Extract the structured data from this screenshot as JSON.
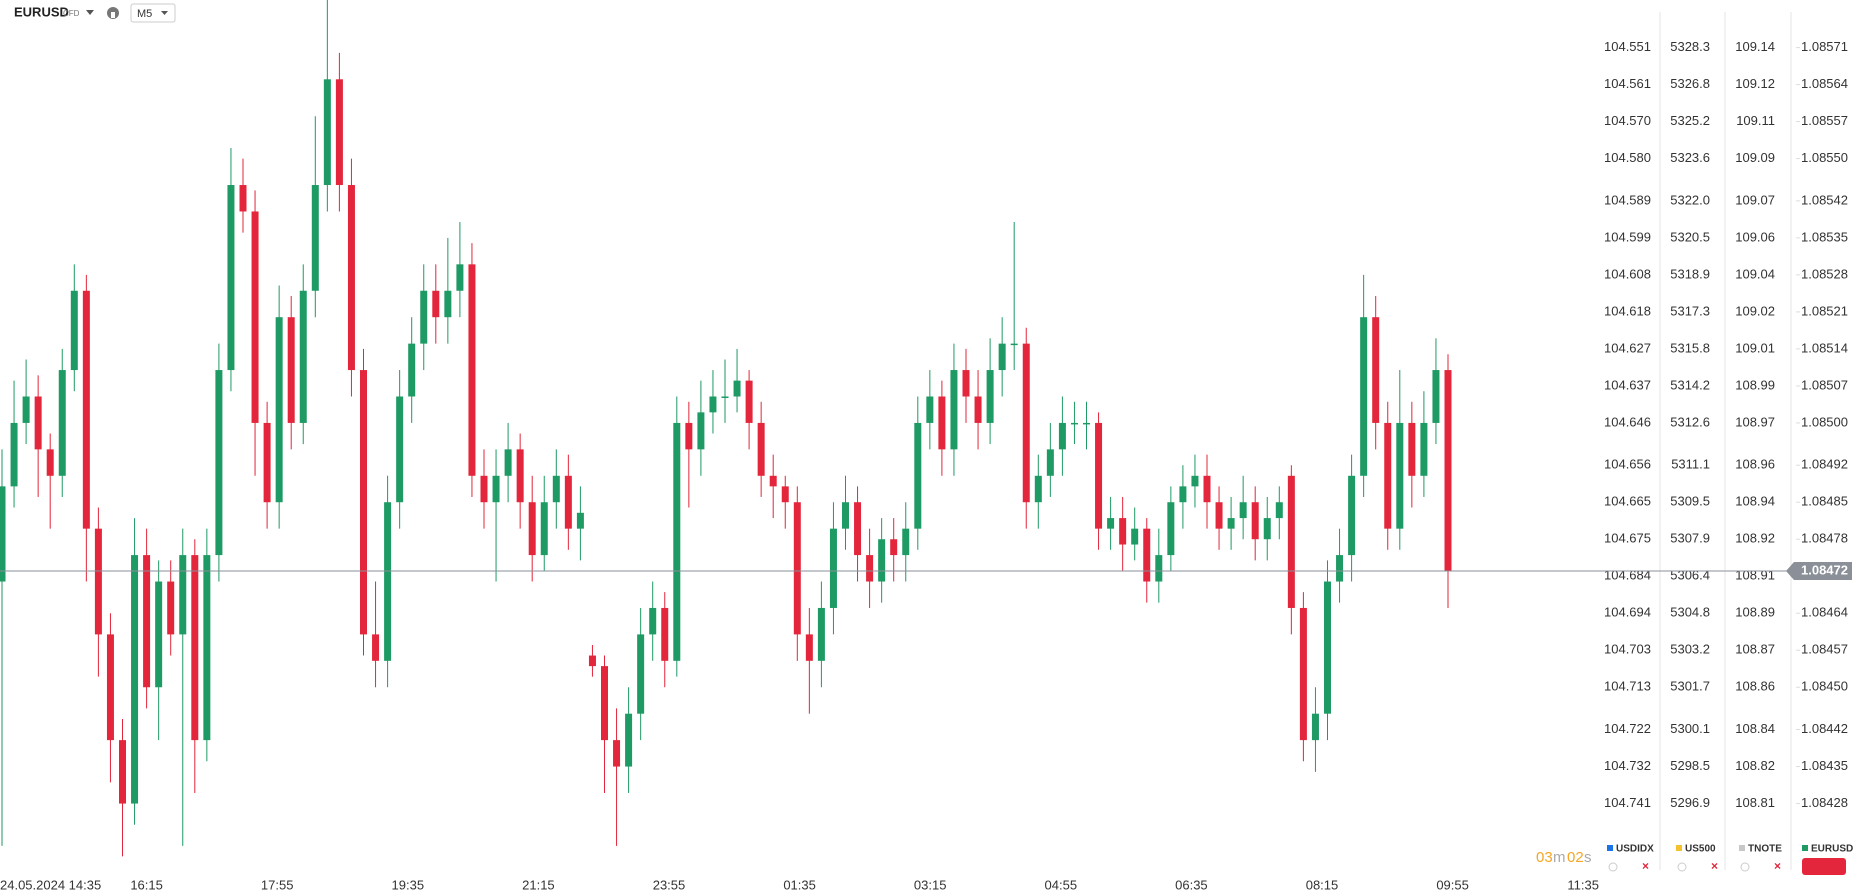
{
  "header": {
    "symbol": "EURUSD",
    "badge": "CFD",
    "timeframe": "M5"
  },
  "chart_data": {
    "type": "candlestick",
    "title": "EURUSD",
    "up_color": "#1e9a64",
    "down_color": "#e3263b",
    "x_labels": [
      "24.05.2024 14:35",
      "16:15",
      "17:55",
      "19:35",
      "21:15",
      "23:55",
      "01:35",
      "03:15",
      "04:55",
      "06:35",
      "08:15",
      "09:55",
      "11:35"
    ],
    "ylim": [
      1.08416,
      1.0858
    ],
    "candles": [
      [
        1.0847,
        1.08495,
        1.0842,
        1.08488
      ],
      [
        1.08488,
        1.08508,
        1.08484,
        1.085
      ],
      [
        1.085,
        1.08512,
        1.08496,
        1.08505
      ],
      [
        1.08505,
        1.08509,
        1.08486,
        1.08495
      ],
      [
        1.08495,
        1.08498,
        1.0848,
        1.0849
      ],
      [
        1.0849,
        1.08514,
        1.08486,
        1.0851
      ],
      [
        1.0851,
        1.0853,
        1.08506,
        1.08525
      ],
      [
        1.08525,
        1.08528,
        1.0847,
        1.0848
      ],
      [
        1.0848,
        1.08484,
        1.08452,
        1.0846
      ],
      [
        1.0846,
        1.08464,
        1.08432,
        1.0844
      ],
      [
        1.0844,
        1.08444,
        1.08418,
        1.08428
      ],
      [
        1.08428,
        1.08482,
        1.08424,
        1.08475
      ],
      [
        1.08475,
        1.0848,
        1.08446,
        1.0845
      ],
      [
        1.0845,
        1.08474,
        1.0844,
        1.0847
      ],
      [
        1.0847,
        1.08474,
        1.08456,
        1.0846
      ],
      [
        1.0846,
        1.0848,
        1.0842,
        1.08475
      ],
      [
        1.08475,
        1.08478,
        1.0843,
        1.0844
      ],
      [
        1.0844,
        1.0848,
        1.08436,
        1.08475
      ],
      [
        1.08475,
        1.08515,
        1.0847,
        1.0851
      ],
      [
        1.0851,
        1.08552,
        1.08506,
        1.08545
      ],
      [
        1.08545,
        1.0855,
        1.08536,
        1.0854
      ],
      [
        1.0854,
        1.08544,
        1.0849,
        1.085
      ],
      [
        1.085,
        1.08504,
        1.0848,
        1.08485
      ],
      [
        1.08485,
        1.08526,
        1.0848,
        1.0852
      ],
      [
        1.0852,
        1.08524,
        1.08495,
        1.085
      ],
      [
        1.085,
        1.0853,
        1.08496,
        1.08525
      ],
      [
        1.08525,
        1.08558,
        1.0852,
        1.08545
      ],
      [
        1.08545,
        1.08583,
        1.0854,
        1.08565
      ],
      [
        1.08565,
        1.0857,
        1.0854,
        1.08545
      ],
      [
        1.08545,
        1.0855,
        1.08505,
        1.0851
      ],
      [
        1.0851,
        1.08514,
        1.08456,
        1.0846
      ],
      [
        1.0846,
        1.0847,
        1.0845,
        1.08455
      ],
      [
        1.08455,
        1.0849,
        1.0845,
        1.08485
      ],
      [
        1.08485,
        1.0851,
        1.0848,
        1.08505
      ],
      [
        1.08505,
        1.0852,
        1.085,
        1.08515
      ],
      [
        1.08515,
        1.0853,
        1.0851,
        1.08525
      ],
      [
        1.08525,
        1.0853,
        1.08515,
        1.0852
      ],
      [
        1.0852,
        1.08535,
        1.08515,
        1.08525
      ],
      [
        1.08525,
        1.08538,
        1.0852,
        1.0853
      ],
      [
        1.0853,
        1.08534,
        1.08486,
        1.0849
      ],
      [
        1.0849,
        1.08495,
        1.0848,
        1.08485
      ],
      [
        1.08485,
        1.08495,
        1.0847,
        1.0849
      ],
      [
        1.0849,
        1.085,
        1.08485,
        1.08495
      ],
      [
        1.08495,
        1.08498,
        1.0848,
        1.08485
      ],
      [
        1.08485,
        1.0849,
        1.0847,
        1.08475
      ],
      [
        1.08475,
        1.0849,
        1.08472,
        1.08485
      ],
      [
        1.08485,
        1.08495,
        1.0848,
        1.0849
      ],
      [
        1.0849,
        1.08494,
        1.08476,
        1.0848
      ],
      [
        1.0848,
        1.08488,
        1.08474,
        1.08483
      ],
      [
        1.08456,
        1.08458,
        1.08452,
        1.08454
      ],
      [
        1.08454,
        1.08456,
        1.0843,
        1.0844
      ],
      [
        1.0844,
        1.08446,
        1.0842,
        1.08435
      ],
      [
        1.08435,
        1.0845,
        1.0843,
        1.08445
      ],
      [
        1.08445,
        1.08465,
        1.0844,
        1.0846
      ],
      [
        1.0846,
        1.0847,
        1.08455,
        1.08465
      ],
      [
        1.08465,
        1.08468,
        1.0845,
        1.08455
      ],
      [
        1.08455,
        1.08505,
        1.08452,
        1.085
      ],
      [
        1.085,
        1.08504,
        1.08484,
        1.08495
      ],
      [
        1.08495,
        1.08508,
        1.0849,
        1.08502
      ],
      [
        1.08502,
        1.0851,
        1.08498,
        1.08505
      ],
      [
        1.08505,
        1.08512,
        1.085,
        1.08505
      ],
      [
        1.08505,
        1.08514,
        1.08502,
        1.08508
      ],
      [
        1.08508,
        1.0851,
        1.08495,
        1.085
      ],
      [
        1.085,
        1.08504,
        1.08486,
        1.0849
      ],
      [
        1.0849,
        1.08494,
        1.08482,
        1.08488
      ],
      [
        1.08488,
        1.0849,
        1.0848,
        1.08485
      ],
      [
        1.08485,
        1.08488,
        1.08455,
        1.0846
      ],
      [
        1.0846,
        1.08465,
        1.08445,
        1.08455
      ],
      [
        1.08455,
        1.0847,
        1.0845,
        1.08465
      ],
      [
        1.08465,
        1.08485,
        1.0846,
        1.0848
      ],
      [
        1.0848,
        1.0849,
        1.08476,
        1.08485
      ],
      [
        1.08485,
        1.08488,
        1.0847,
        1.08475
      ],
      [
        1.08475,
        1.0848,
        1.08465,
        1.0847
      ],
      [
        1.0847,
        1.08482,
        1.08466,
        1.08478
      ],
      [
        1.08478,
        1.08482,
        1.0847,
        1.08475
      ],
      [
        1.08475,
        1.08485,
        1.0847,
        1.0848
      ],
      [
        1.0848,
        1.08505,
        1.08476,
        1.085
      ],
      [
        1.085,
        1.0851,
        1.08495,
        1.08505
      ],
      [
        1.08505,
        1.08508,
        1.0849,
        1.08495
      ],
      [
        1.08495,
        1.08515,
        1.0849,
        1.0851
      ],
      [
        1.0851,
        1.08514,
        1.085,
        1.08505
      ],
      [
        1.08505,
        1.0851,
        1.08495,
        1.085
      ],
      [
        1.085,
        1.08516,
        1.08496,
        1.0851
      ],
      [
        1.0851,
        1.0852,
        1.08505,
        1.08515
      ],
      [
        1.08515,
        1.08538,
        1.0851,
        1.08515
      ],
      [
        1.08515,
        1.08518,
        1.0848,
        1.08485
      ],
      [
        1.08485,
        1.08494,
        1.0848,
        1.0849
      ],
      [
        1.0849,
        1.085,
        1.08486,
        1.08495
      ],
      [
        1.08495,
        1.08505,
        1.0849,
        1.085
      ],
      [
        1.085,
        1.08504,
        1.08496,
        1.085
      ],
      [
        1.085,
        1.08504,
        1.08495,
        1.085
      ],
      [
        1.085,
        1.08502,
        1.08476,
        1.0848
      ],
      [
        1.0848,
        1.08486,
        1.08476,
        1.08482
      ],
      [
        1.08482,
        1.08486,
        1.08472,
        1.08477
      ],
      [
        1.08477,
        1.08484,
        1.08474,
        1.0848
      ],
      [
        1.0848,
        1.08482,
        1.08466,
        1.0847
      ],
      [
        1.0847,
        1.0848,
        1.08466,
        1.08475
      ],
      [
        1.08475,
        1.08488,
        1.08472,
        1.08485
      ],
      [
        1.08485,
        1.08492,
        1.0848,
        1.08488
      ],
      [
        1.08488,
        1.08494,
        1.08484,
        1.0849
      ],
      [
        1.0849,
        1.08494,
        1.0848,
        1.08485
      ],
      [
        1.08485,
        1.08488,
        1.08476,
        1.0848
      ],
      [
        1.0848,
        1.08486,
        1.08476,
        1.08482
      ],
      [
        1.08482,
        1.0849,
        1.08478,
        1.08485
      ],
      [
        1.08485,
        1.08488,
        1.08474,
        1.08478
      ],
      [
        1.08478,
        1.08486,
        1.08474,
        1.08482
      ],
      [
        1.08482,
        1.08488,
        1.08478,
        1.08485
      ],
      [
        1.0849,
        1.08492,
        1.0846,
        1.08465
      ],
      [
        1.08465,
        1.08468,
        1.08436,
        1.0844
      ],
      [
        1.0844,
        1.0845,
        1.08434,
        1.08445
      ],
      [
        1.08445,
        1.08474,
        1.0844,
        1.0847
      ],
      [
        1.0847,
        1.0848,
        1.08466,
        1.08475
      ],
      [
        1.08475,
        1.08494,
        1.0847,
        1.0849
      ],
      [
        1.0849,
        1.08528,
        1.08486,
        1.0852
      ],
      [
        1.0852,
        1.08524,
        1.08495,
        1.085
      ],
      [
        1.085,
        1.08504,
        1.08476,
        1.0848
      ],
      [
        1.0848,
        1.0851,
        1.08476,
        1.085
      ],
      [
        1.085,
        1.08504,
        1.08484,
        1.0849
      ],
      [
        1.0849,
        1.08506,
        1.08486,
        1.085
      ],
      [
        1.085,
        1.08516,
        1.08496,
        1.0851
      ],
      [
        1.0851,
        1.08513,
        1.08465,
        1.08472
      ]
    ],
    "current_price": 1.08472,
    "yticks": [
      1.08571,
      1.08564,
      1.08557,
      {
        "value": 1.0855,
        "label": "1.08550"
      },
      1.08542,
      1.08535,
      1.08528,
      1.08521,
      1.08514,
      1.08507,
      {
        "value": 1.085,
        "label": "1.08500"
      },
      1.08492,
      1.08485,
      1.08478,
      1.08471,
      1.08464,
      1.08457,
      {
        "value": 1.0845,
        "label": "1.08450"
      },
      1.08442,
      1.08435,
      1.08428
    ],
    "other_axes": [
      {
        "name": "USDIDX",
        "color": "#1a73e8",
        "ticks": [
          104.551,
          104.561,
          {
            "value": 104.57,
            "label": "104.570"
          },
          {
            "value": 104.58,
            "label": "104.580"
          },
          104.589,
          104.599,
          104.608,
          104.618,
          104.627,
          104.637,
          104.646,
          104.656,
          104.665,
          104.675,
          104.684,
          104.694,
          104.703,
          104.713,
          104.722,
          104.732,
          104.741
        ]
      },
      {
        "name": "US500",
        "color": "#f2c230",
        "ticks": [
          5328.3,
          5326.8,
          5325.2,
          5323.6,
          {
            "value": 5322,
            "label": "5322.0"
          },
          5320.5,
          5318.9,
          5317.3,
          5315.8,
          5314.2,
          5312.6,
          5311.1,
          5309.5,
          5307.9,
          5306.4,
          5304.8,
          5303.2,
          5301.7,
          5300.1,
          5298.5,
          5296.9
        ]
      },
      {
        "name": "TNOTE",
        "color": "#c8c8c8",
        "ticks": [
          109.14,
          109.12,
          109.11,
          109.09,
          109.07,
          109.06,
          109.04,
          109.02,
          109.01,
          108.99,
          108.97,
          108.96,
          108.94,
          108.92,
          108.91,
          108.89,
          108.87,
          108.86,
          108.84,
          108.82,
          108.81
        ]
      }
    ],
    "legend_color": "#1e9a64",
    "countdown": [
      "03",
      "m",
      "02",
      "s"
    ]
  }
}
